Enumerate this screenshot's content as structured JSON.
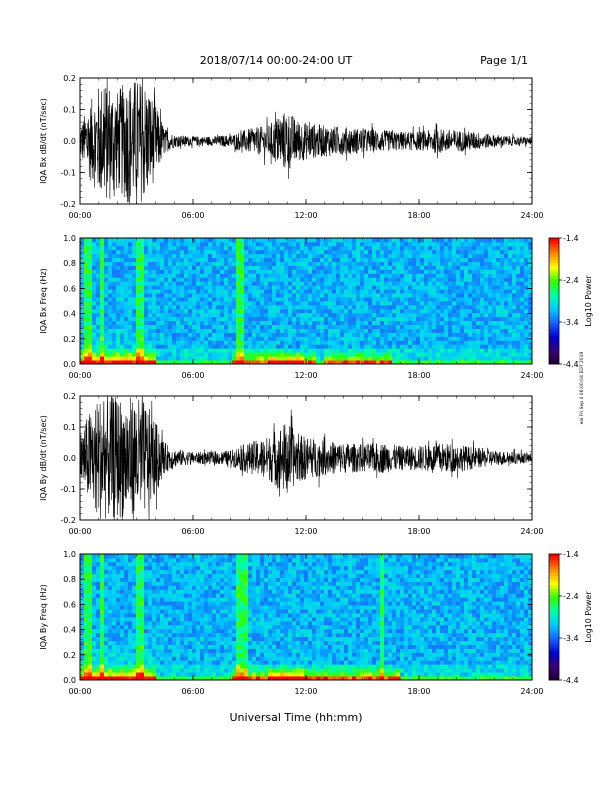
{
  "header": {
    "title": "2018/07/14  00:00-24:00 UT",
    "page": "Page 1/1"
  },
  "footer": {
    "xlabel": "Universal Time (hh:mm)",
    "side_note": "eoi Fri Sep 4 06:00:04 EDT 2019"
  },
  "colors": {
    "trace": "#000000",
    "colormap": [
      "#1a0030",
      "#3a0070",
      "#0000cc",
      "#1a5cff",
      "#00c8ff",
      "#00ffaa",
      "#33ff00",
      "#ffff00",
      "#ff8800",
      "#ff0000"
    ]
  },
  "chart_data": [
    {
      "type": "line",
      "ylabel": "IQA Bx dB/dt (nT/sec)",
      "xlim": [
        0,
        24
      ],
      "ylim": [
        -0.2,
        0.2
      ],
      "yticks": [
        "0.2",
        "0.1",
        "0.0",
        "-0.1",
        "-0.2"
      ],
      "xticks": [
        "00:00",
        "06:00",
        "12:00",
        "18:00",
        "24:00"
      ],
      "amplitude_envelope": {
        "hours": [
          0,
          0.5,
          1,
          1.5,
          2,
          2.5,
          3,
          3.5,
          4,
          4.5,
          5,
          6,
          7,
          8,
          8.5,
          9,
          10,
          10.5,
          11,
          11.5,
          12,
          13,
          14,
          15,
          16,
          17,
          18,
          19,
          20,
          21,
          22,
          23,
          24
        ],
        "values": [
          0.05,
          0.12,
          0.18,
          0.2,
          0.16,
          0.2,
          0.2,
          0.19,
          0.12,
          0.04,
          0.02,
          0.015,
          0.015,
          0.02,
          0.03,
          0.04,
          0.05,
          0.08,
          0.1,
          0.07,
          0.06,
          0.05,
          0.045,
          0.04,
          0.035,
          0.03,
          0.03,
          0.04,
          0.035,
          0.03,
          0.02,
          0.015,
          0.012
        ]
      }
    },
    {
      "type": "heatmap",
      "ylabel": "IQA Bx Freq (Hz)",
      "xlim": [
        0,
        24
      ],
      "ylim": [
        0,
        1.0
      ],
      "yticks": [
        "1.0",
        "0.8",
        "0.6",
        "0.4",
        "0.2",
        "0.0"
      ],
      "xticks": [
        "00:00",
        "06:00",
        "12:00",
        "18:00",
        "24:00"
      ],
      "colorbar": {
        "label": "Log10 Power",
        "range": [
          -4.4,
          -1.4
        ],
        "ticks": [
          "-1.4",
          "-2.4",
          "-3.4",
          "-4.4"
        ]
      },
      "bright_hours": [
        0.4,
        0.6,
        1.2,
        3.1,
        3.3,
        8.5
      ],
      "low_freq_enhancement_hours": [
        [
          0,
          4
        ],
        [
          8,
          12.5
        ],
        [
          13,
          16.5
        ]
      ]
    },
    {
      "type": "line",
      "ylabel": "IQA By dB/dt (nT/sec)",
      "xlim": [
        0,
        24
      ],
      "ylim": [
        -0.2,
        0.2
      ],
      "yticks": [
        "0.2",
        "0.1",
        "0.0",
        "-0.1",
        "-0.2"
      ],
      "xticks": [
        "00:00",
        "06:00",
        "12:00",
        "18:00",
        "24:00"
      ],
      "amplitude_envelope": {
        "hours": [
          0,
          0.5,
          1,
          1.5,
          2,
          2.5,
          3,
          3.5,
          4,
          4.5,
          5,
          6,
          7,
          8,
          8.5,
          9,
          10,
          10.5,
          11,
          11.5,
          12,
          13,
          14,
          15,
          16,
          17,
          18,
          19,
          20,
          21,
          22,
          23,
          24
        ],
        "values": [
          0.08,
          0.15,
          0.2,
          0.2,
          0.2,
          0.2,
          0.2,
          0.18,
          0.12,
          0.05,
          0.03,
          0.02,
          0.02,
          0.025,
          0.04,
          0.05,
          0.07,
          0.1,
          0.12,
          0.08,
          0.07,
          0.055,
          0.05,
          0.045,
          0.05,
          0.04,
          0.04,
          0.05,
          0.045,
          0.035,
          0.025,
          0.02,
          0.015
        ]
      }
    },
    {
      "type": "heatmap",
      "ylabel": "IQA By Freq (Hz)",
      "xlim": [
        0,
        24
      ],
      "ylim": [
        0,
        1.0
      ],
      "yticks": [
        "1.0",
        "0.8",
        "0.6",
        "0.4",
        "0.2",
        "0.0"
      ],
      "xticks": [
        "00:00",
        "06:00",
        "12:00",
        "18:00",
        "24:00"
      ],
      "colorbar": {
        "label": "Log10 Power",
        "range": [
          -4.4,
          -1.4
        ],
        "ticks": [
          "-1.4",
          "-2.4",
          "-3.4",
          "-4.4"
        ]
      },
      "bright_hours": [
        0.4,
        0.6,
        1.2,
        3.1,
        3.3,
        8.5,
        8.7,
        16.1
      ],
      "low_freq_enhancement_hours": [
        [
          0,
          4
        ],
        [
          8,
          13
        ],
        [
          13,
          17
        ]
      ]
    }
  ]
}
